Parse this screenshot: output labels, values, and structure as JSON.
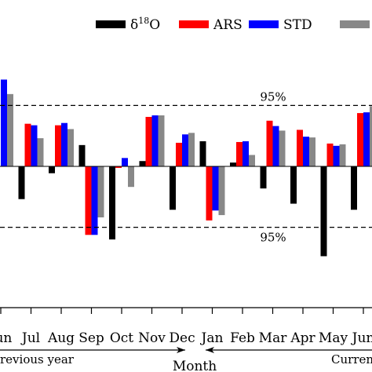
{
  "chart_data": {
    "type": "bar",
    "xlabel": "Month",
    "ylabel": "",
    "ylim": [
      -1.5,
      1.5
    ],
    "categories": [
      "Jun",
      "Jul",
      "Aug",
      "Sep",
      "Oct",
      "Nov",
      "Dec",
      "Jan",
      "Feb",
      "Mar",
      "Apr",
      "May",
      "Jun"
    ],
    "series": [
      {
        "name": "δ18O",
        "name_base": "δ",
        "name_sup": "18",
        "name_rest": "O",
        "color": "#000000",
        "values": [
          null,
          -0.43,
          -0.09,
          0.28,
          -0.96,
          0.07,
          -0.57,
          0.33,
          0.05,
          -0.29,
          -0.49,
          -1.18,
          -0.57
        ]
      },
      {
        "name": "ARS",
        "color": "#ff0000",
        "values": [
          null,
          0.56,
          0.54,
          -0.9,
          -0.02,
          0.65,
          0.31,
          -0.71,
          0.32,
          0.6,
          0.48,
          0.3,
          0.7
        ]
      },
      {
        "name": "STD",
        "color": "#0000ff",
        "values": [
          1.14,
          0.54,
          0.57,
          -0.9,
          0.11,
          0.67,
          0.42,
          -0.58,
          0.33,
          0.53,
          0.39,
          0.27,
          0.71
        ]
      },
      {
        "name": "",
        "color": "#888888",
        "values": [
          0.95,
          0.37,
          0.49,
          -0.67,
          -0.27,
          0.67,
          0.44,
          -0.64,
          0.15,
          0.47,
          0.38,
          0.29,
          0.79
        ]
      }
    ],
    "reference_lines": [
      {
        "value": 0.8,
        "label": "95%",
        "style": "dashed"
      },
      {
        "value": -0.8,
        "label": "95%",
        "style": "dashed"
      }
    ],
    "period_labels": {
      "previous": "revious year",
      "current": "Curren"
    },
    "grid": false,
    "legend_position": "top"
  }
}
